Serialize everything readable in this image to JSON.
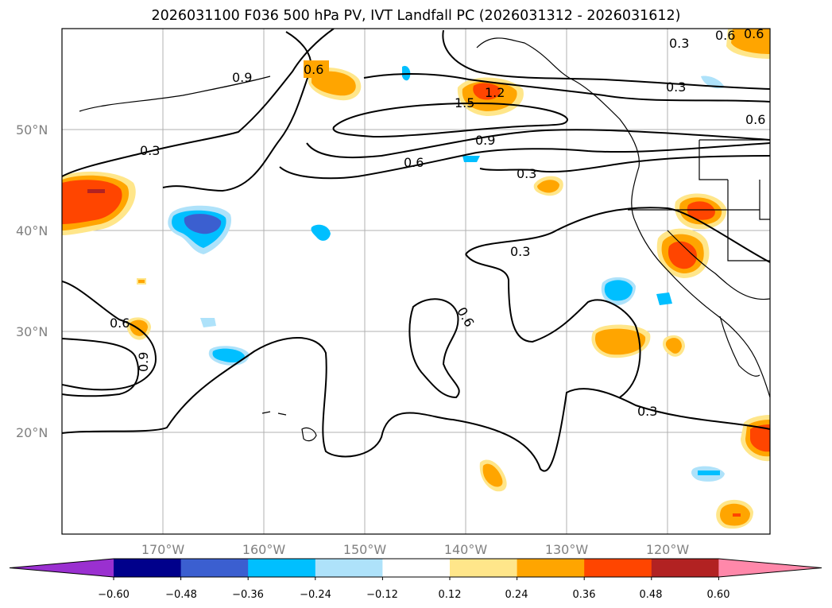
{
  "title": "2026031100 F036 500 hPa PV, IVT Landfall PC (2026031312 - 2026031612)",
  "axes": {
    "lat_labels": [
      "50°N",
      "40°N",
      "30°N",
      "20°N"
    ],
    "lon_labels": [
      "170°W",
      "160°W",
      "150°W",
      "140°W",
      "130°W",
      "120°W"
    ]
  },
  "contour_labels": [
    "0.6",
    "0.9",
    "1.2",
    "1.5",
    "0.3",
    "0.6",
    "0.9",
    "0.3",
    "0.6",
    "0.3",
    "0.3",
    "0.6",
    "0.6",
    "0.9",
    "0.6",
    "0.3",
    "0.3",
    "0.6"
  ],
  "colorbar": {
    "tick_labels": [
      "−0.60",
      "−0.48",
      "−0.36",
      "−0.24",
      "−0.12",
      "0.12",
      "0.24",
      "0.36",
      "0.48",
      "0.60"
    ],
    "colors": [
      "#9a30d0",
      "#00008b",
      "#3b5fd0",
      "#00bfff",
      "#aee2fa",
      "#ffffff",
      "#ffe68a",
      "#ffa500",
      "#ff4500",
      "#b22222",
      "#ff88aa"
    ]
  }
}
